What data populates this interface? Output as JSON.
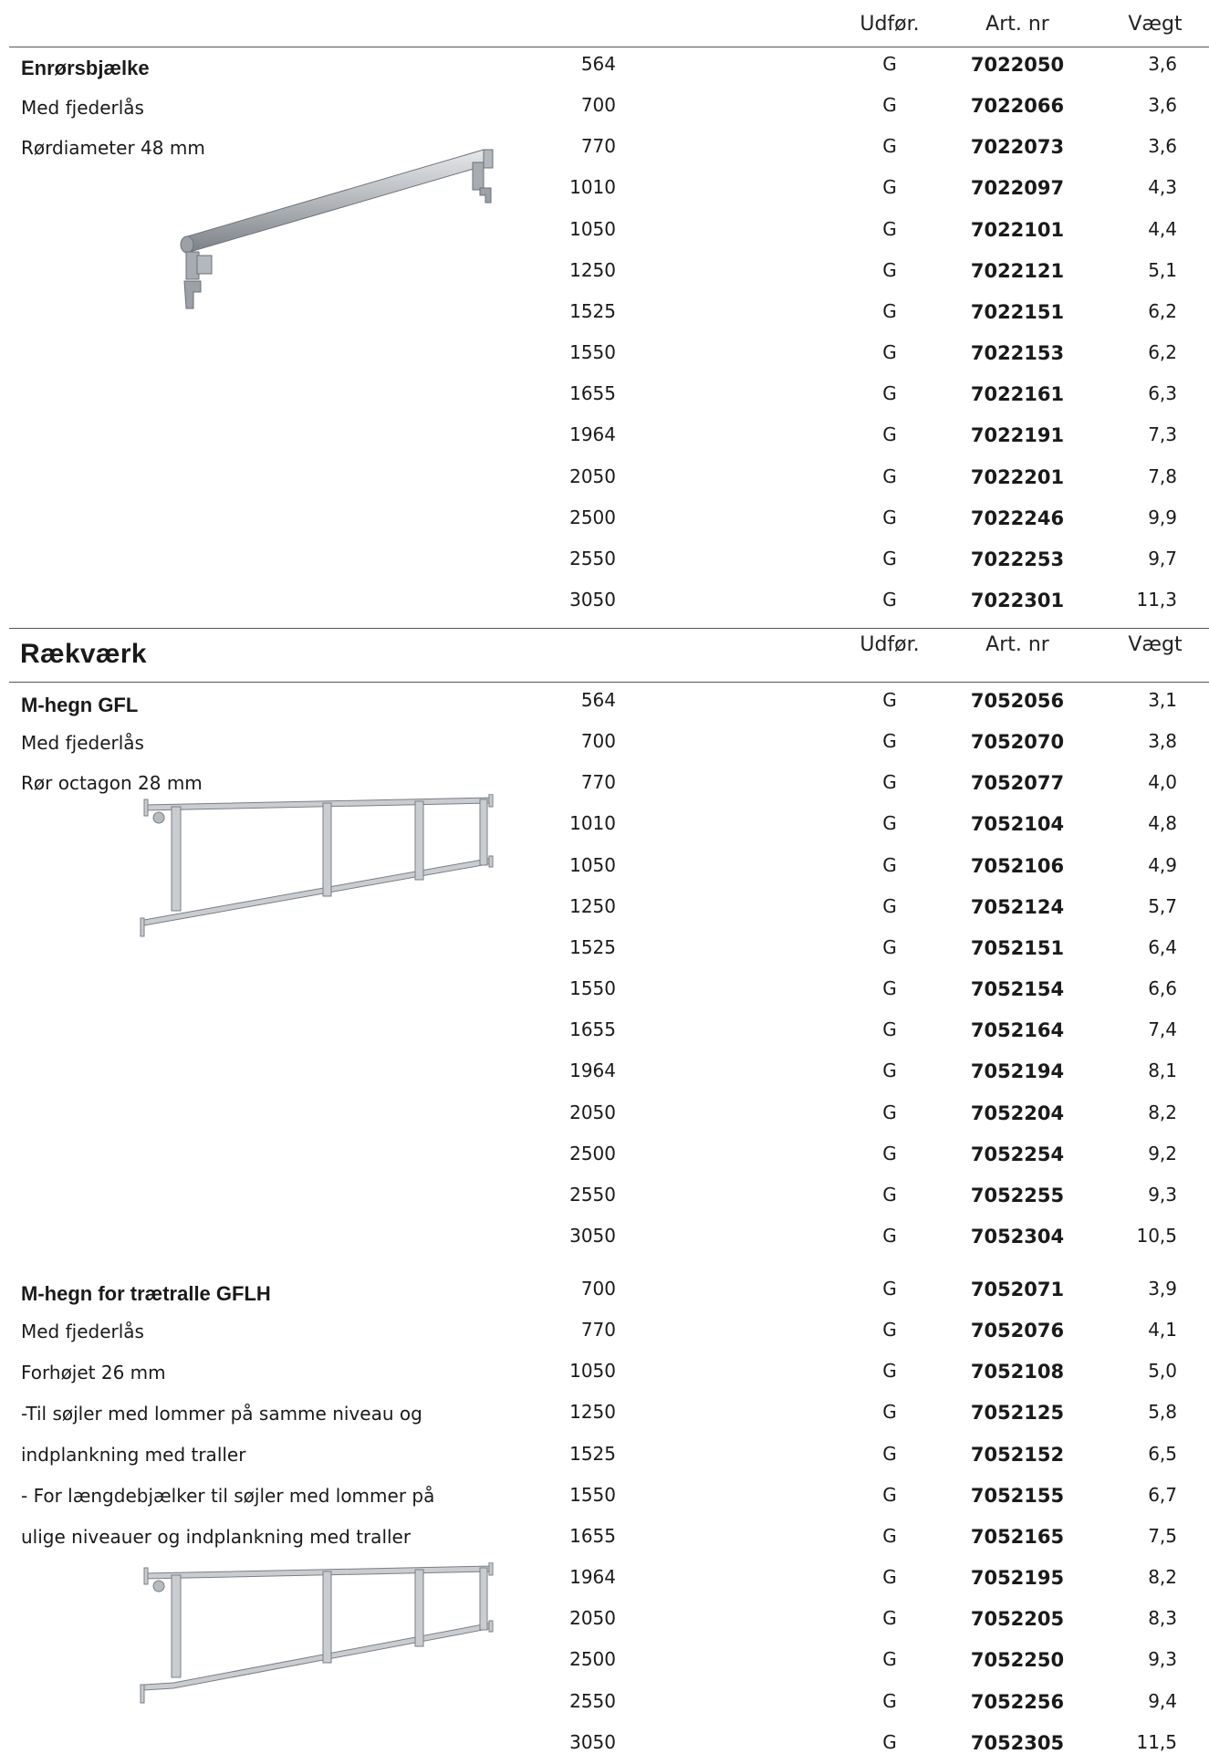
{
  "headers": {
    "udfor": "Udfør.",
    "artnr": "Art. nr",
    "vaegt": "Vægt"
  },
  "section2_title": "Rækværk",
  "products": [
    {
      "lines": [
        "Enrørsbjælke",
        "Med fjederlås",
        "Rørdiameter 48 mm"
      ],
      "rows": [
        {
          "len": "564",
          "ud": "G",
          "art": "7022050",
          "w": "3,6"
        },
        {
          "len": "700",
          "ud": "G",
          "art": "7022066",
          "w": "3,6"
        },
        {
          "len": "770",
          "ud": "G",
          "art": "7022073",
          "w": "3,6"
        },
        {
          "len": "1010",
          "ud": "G",
          "art": "7022097",
          "w": "4,3"
        },
        {
          "len": "1050",
          "ud": "G",
          "art": "7022101",
          "w": "4,4"
        },
        {
          "len": "1250",
          "ud": "G",
          "art": "7022121",
          "w": "5,1"
        },
        {
          "len": "1525",
          "ud": "G",
          "art": "7022151",
          "w": "6,2"
        },
        {
          "len": "1550",
          "ud": "G",
          "art": "7022153",
          "w": "6,2"
        },
        {
          "len": "1655",
          "ud": "G",
          "art": "7022161",
          "w": "6,3"
        },
        {
          "len": "1964",
          "ud": "G",
          "art": "7022191",
          "w": "7,3"
        },
        {
          "len": "2050",
          "ud": "G",
          "art": "7022201",
          "w": "7,8"
        },
        {
          "len": "2500",
          "ud": "G",
          "art": "7022246",
          "w": "9,9"
        },
        {
          "len": "2550",
          "ud": "G",
          "art": "7022253",
          "w": "9,7"
        },
        {
          "len": "3050",
          "ud": "G",
          "art": "7022301",
          "w": "11,3"
        }
      ]
    },
    {
      "lines": [
        "M-hegn GFL",
        "Med fjederlås",
        "Rør octagon 28 mm"
      ],
      "rows": [
        {
          "len": "564",
          "ud": "G",
          "art": "7052056",
          "w": "3,1"
        },
        {
          "len": "700",
          "ud": "G",
          "art": "7052070",
          "w": "3,8"
        },
        {
          "len": "770",
          "ud": "G",
          "art": "7052077",
          "w": "4,0"
        },
        {
          "len": "1010",
          "ud": "G",
          "art": "7052104",
          "w": "4,8"
        },
        {
          "len": "1050",
          "ud": "G",
          "art": "7052106",
          "w": "4,9"
        },
        {
          "len": "1250",
          "ud": "G",
          "art": "7052124",
          "w": "5,7"
        },
        {
          "len": "1525",
          "ud": "G",
          "art": "7052151",
          "w": "6,4"
        },
        {
          "len": "1550",
          "ud": "G",
          "art": "7052154",
          "w": "6,6"
        },
        {
          "len": "1655",
          "ud": "G",
          "art": "7052164",
          "w": "7,4"
        },
        {
          "len": "1964",
          "ud": "G",
          "art": "7052194",
          "w": "8,1"
        },
        {
          "len": "2050",
          "ud": "G",
          "art": "7052204",
          "w": "8,2"
        },
        {
          "len": "2500",
          "ud": "G",
          "art": "7052254",
          "w": "9,2"
        },
        {
          "len": "2550",
          "ud": "G",
          "art": "7052255",
          "w": "9,3"
        },
        {
          "len": "3050",
          "ud": "G",
          "art": "7052304",
          "w": "10,5"
        }
      ]
    },
    {
      "lines": [
        "M-hegn for trætralle GFLH",
        "Med fjederlås",
        "Forhøjet 26 mm",
        "-Til søjler med lommer på samme niveau og",
        "indplankning med traller",
        "- For længdebjælker til søjler med lommer på",
        "ulige niveauer og indplankning med traller"
      ],
      "rows": [
        {
          "len": "700",
          "ud": "G",
          "art": "7052071",
          "w": "3,9"
        },
        {
          "len": "770",
          "ud": "G",
          "art": "7052076",
          "w": "4,1"
        },
        {
          "len": "1050",
          "ud": "G",
          "art": "7052108",
          "w": "5,0"
        },
        {
          "len": "1250",
          "ud": "G",
          "art": "7052125",
          "w": "5,8"
        },
        {
          "len": "1525",
          "ud": "G",
          "art": "7052152",
          "w": "6,5"
        },
        {
          "len": "1550",
          "ud": "G",
          "art": "7052155",
          "w": "6,7"
        },
        {
          "len": "1655",
          "ud": "G",
          "art": "7052165",
          "w": "7,5"
        },
        {
          "len": "1964",
          "ud": "G",
          "art": "7052195",
          "w": "8,2"
        },
        {
          "len": "2050",
          "ud": "G",
          "art": "7052205",
          "w": "8,3"
        },
        {
          "len": "2500",
          "ud": "G",
          "art": "7052250",
          "w": "9,3"
        },
        {
          "len": "2550",
          "ud": "G",
          "art": "7052256",
          "w": "9,4"
        },
        {
          "len": "3050",
          "ud": "G",
          "art": "7052305",
          "w": "11,5"
        }
      ]
    }
  ]
}
